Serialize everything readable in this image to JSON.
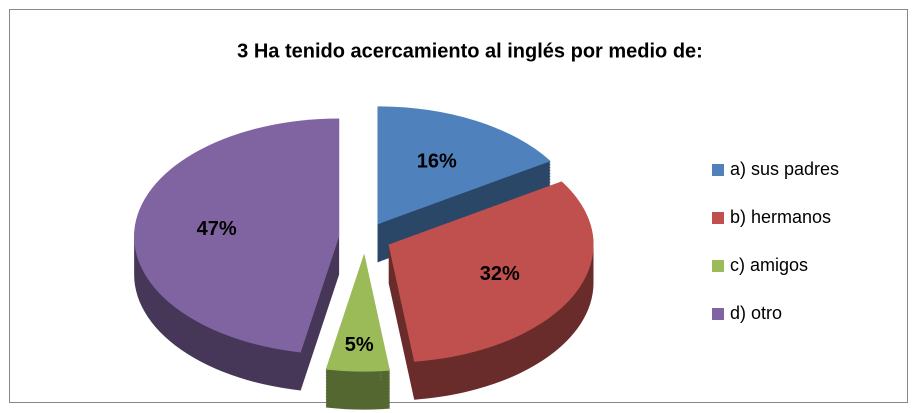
{
  "chart_data": {
    "type": "pie",
    "title": "3 Ha tenido acercamiento al inglés por medio de:",
    "categories": [
      "a) sus padres",
      "b) hermanos",
      "c) amigos",
      "d) otro"
    ],
    "values": [
      16,
      32,
      5,
      47
    ],
    "value_labels": [
      "16%",
      "32%",
      "5%",
      "47%"
    ],
    "colors": [
      "#4f81bd",
      "#c0504d",
      "#9bbb59",
      "#8064a2"
    ],
    "legend": "right"
  }
}
